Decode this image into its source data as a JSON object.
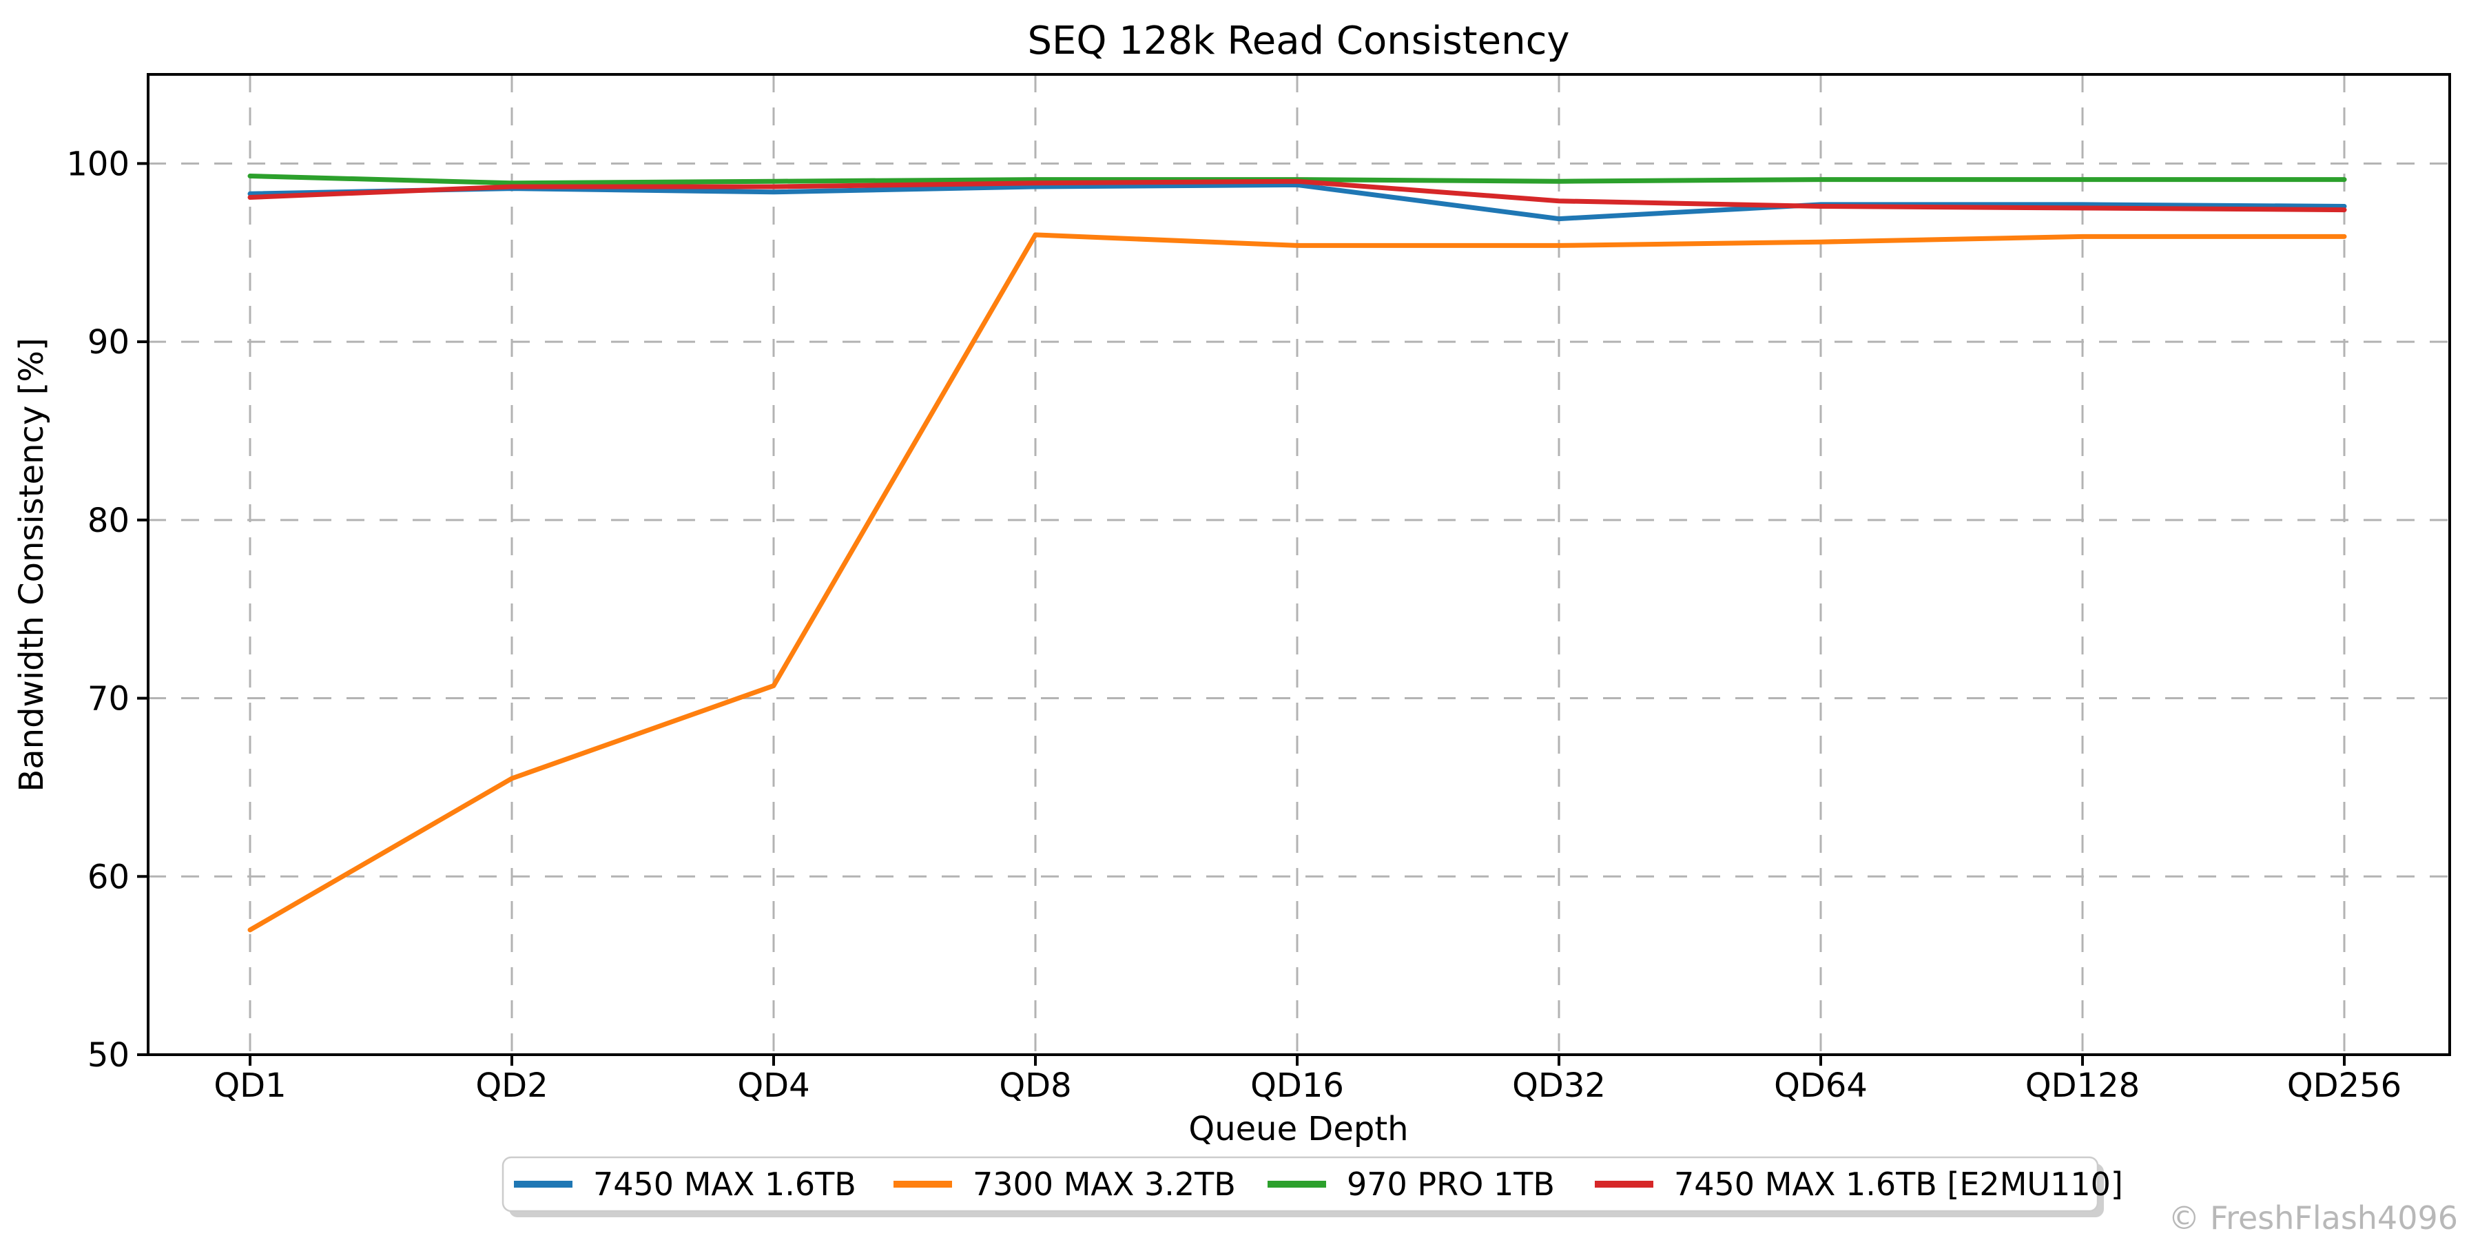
{
  "title": "SEQ 128k Read Consistency",
  "watermark": "© FreshFlash4096",
  "axes": {
    "xlabel": "Queue Depth",
    "ylabel": "Bandwidth Consistency [%]"
  },
  "colors": {
    "grid": "#b3b3b3",
    "spine": "#000000",
    "legend_border": "#cccccc",
    "legend_shadow": "#cfcfcf",
    "watermark": "#b8b8b8"
  },
  "chart_data": {
    "type": "line",
    "title": "SEQ 128k Read Consistency",
    "xlabel": "Queue Depth",
    "ylabel": "Bandwidth Consistency [%]",
    "categories": [
      "QD1",
      "QD2",
      "QD4",
      "QD8",
      "QD16",
      "QD32",
      "QD64",
      "QD128",
      "QD256"
    ],
    "ylim": [
      50,
      105
    ],
    "yticks": [
      50,
      60,
      70,
      80,
      90,
      100
    ],
    "grid": "dashed",
    "legend_position": "bottom-center",
    "series": [
      {
        "name": "7450 MAX 1.6TB",
        "color": "#1f77b4",
        "values": [
          98.3,
          98.6,
          98.4,
          98.7,
          98.8,
          96.9,
          97.7,
          97.7,
          97.6
        ]
      },
      {
        "name": "7300 MAX 3.2TB",
        "color": "#ff7f0e",
        "values": [
          57.0,
          65.5,
          70.7,
          96.0,
          95.4,
          95.4,
          95.6,
          95.9,
          95.9
        ]
      },
      {
        "name": "970 PRO 1TB",
        "color": "#2ca02c",
        "values": [
          99.3,
          98.9,
          99.0,
          99.1,
          99.1,
          99.0,
          99.1,
          99.1,
          99.1
        ]
      },
      {
        "name": "7450 MAX 1.6TB [E2MU110]",
        "color": "#d62728",
        "values": [
          98.1,
          98.7,
          98.7,
          98.9,
          99.0,
          97.9,
          97.6,
          97.5,
          97.4
        ]
      }
    ]
  }
}
